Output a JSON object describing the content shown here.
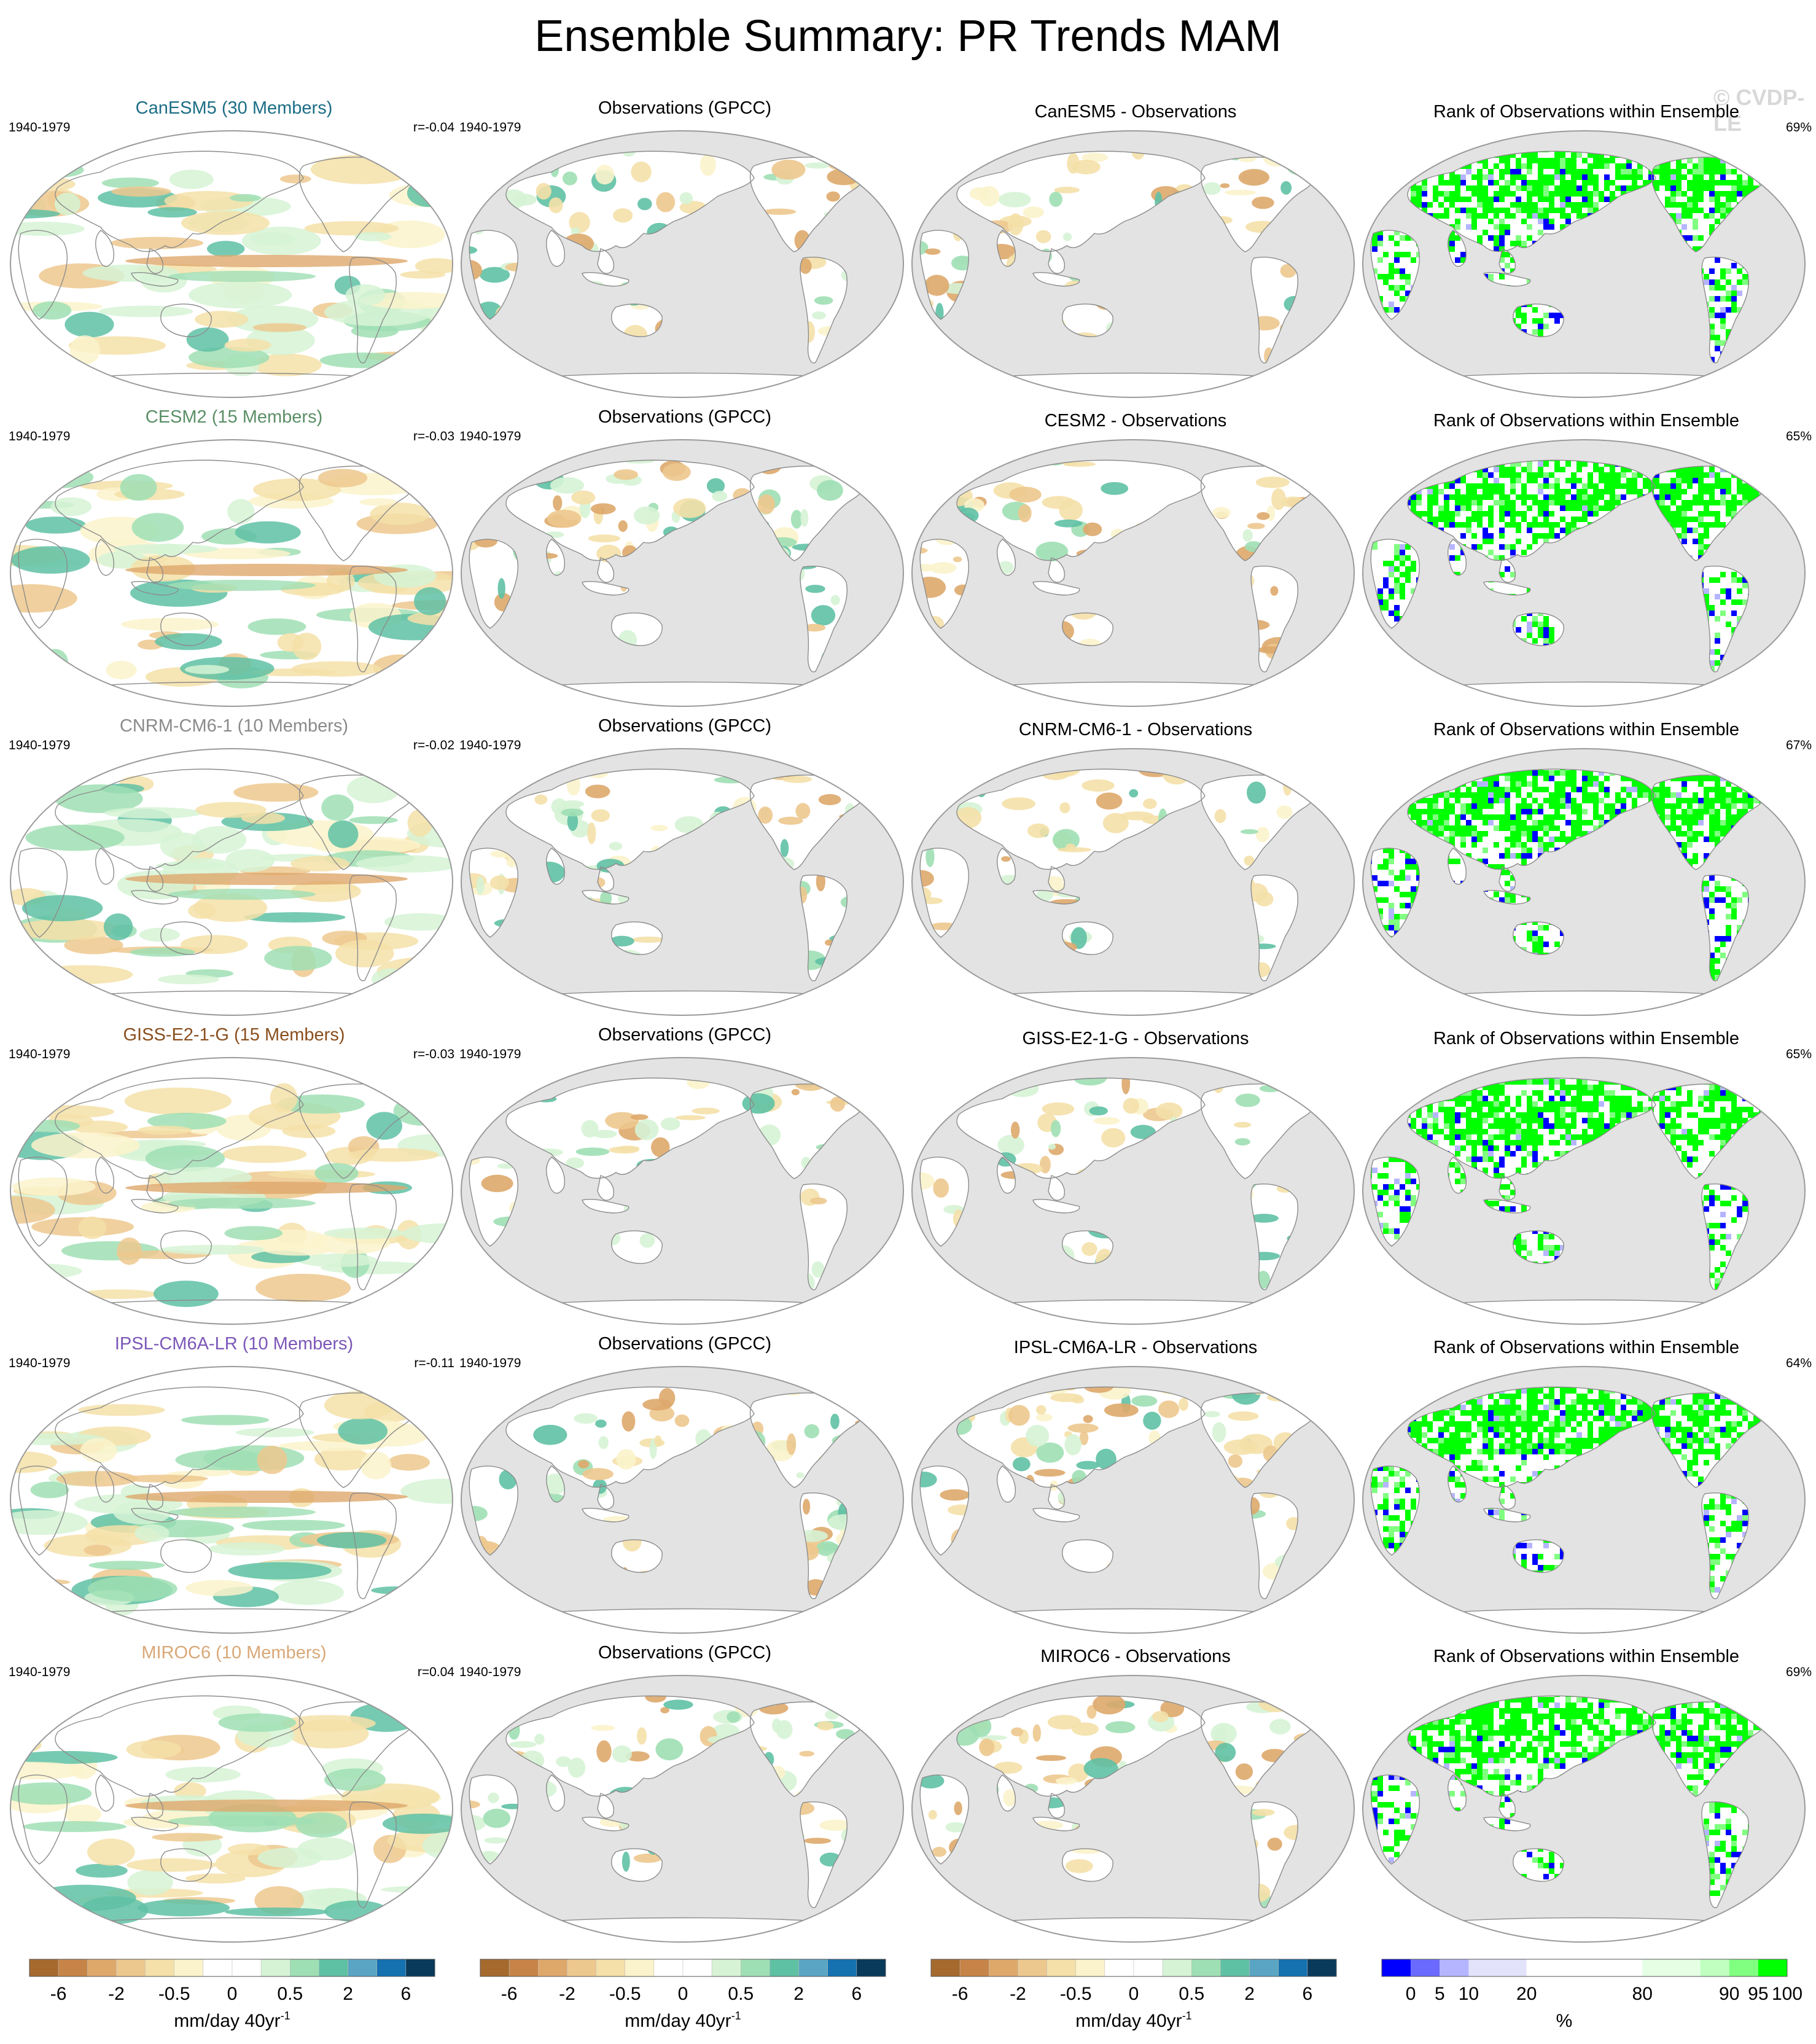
{
  "title": "Ensemble Summary: PR Trends MAM",
  "watermark": "© CVDP-LE",
  "colors": {
    "brown_green": [
      "#a66a2f",
      "#c78448",
      "#dea86b",
      "#edc88e",
      "#f4e0a8",
      "#fbf3cb",
      "#ffffff",
      "#ffffff",
      "#d6f3d5",
      "#9fdfb4",
      "#5fc1a4",
      "#5aa5c4",
      "#1571b0",
      "#093a5a"
    ],
    "rank": [
      "#0000ff",
      "#6a6aff",
      "#b5b5ff",
      "#e2e2fb",
      "#ffffff",
      "#ffffff",
      "#e5ffe5",
      "#c0ffc0",
      "#80ff80",
      "#00ff00"
    ],
    "ocean_gray": "#e3e3e3",
    "land_gray": "#e3e3e3"
  },
  "column_titles": {
    "obs": "Observations (GPCC)",
    "rank": "Rank of Observations within Ensemble"
  },
  "period": "1940-1979",
  "rows": [
    {
      "model_title": "CanESM5 (30 Members)",
      "model_color": "#1d6e86",
      "r": "r=-0.04",
      "diff_title": "CanESM5 - Observations",
      "rank_pct": "69%"
    },
    {
      "model_title": "CESM2 (15 Members)",
      "model_color": "#5b8f66",
      "r": "r=-0.03",
      "diff_title": "CESM2 - Observations",
      "rank_pct": "65%"
    },
    {
      "model_title": "CNRM-CM6-1 (10 Members)",
      "model_color": "#8a8a8a",
      "r": "r=-0.02",
      "diff_title": "CNRM-CM6-1 - Observations",
      "rank_pct": "67%"
    },
    {
      "model_title": "GISS-E2-1-G (15 Members)",
      "model_color": "#8a4f1e",
      "r": "r=-0.03",
      "diff_title": "GISS-E2-1-G - Observations",
      "rank_pct": "65%"
    },
    {
      "model_title": "IPSL-CM6A-LR (10 Members)",
      "model_color": "#7c57b8",
      "r": "r=-0.11",
      "diff_title": "IPSL-CM6A-LR - Observations",
      "rank_pct": "64%"
    },
    {
      "model_title": "MIROC6 (10 Members)",
      "model_color": "#d9a878",
      "r": "r=0.04",
      "diff_title": "MIROC6 - Observations",
      "rank_pct": "69%"
    }
  ],
  "colorbars": {
    "trend_ticks": [
      "-6",
      "-2",
      "-0.5",
      "0",
      "0.5",
      "2",
      "6"
    ],
    "trend_label": "mm/day 40yr",
    "trend_label_sup": "-1",
    "rank_ticks": [
      "0",
      "5",
      "10",
      "20",
      "80",
      "90",
      "95",
      "100"
    ],
    "rank_label": "%"
  },
  "chart_data": {
    "type": "heatmap",
    "title": "Ensemble Summary: PR Trends MAM",
    "variable": "PR trends (mm/day 40yr-1), MAM, 1940-1979",
    "trend_levels": [
      -6,
      -4,
      -2,
      -1,
      -0.5,
      -0.25,
      0,
      0.25,
      0.5,
      1,
      2,
      4,
      6
    ],
    "rank_levels": [
      0,
      5,
      10,
      20,
      80,
      90,
      95,
      100
    ],
    "panels": [
      {
        "row": "CanESM5",
        "pattern_correlation": -0.04,
        "rank_percent": 69
      },
      {
        "row": "CESM2",
        "pattern_correlation": -0.03,
        "rank_percent": 65
      },
      {
        "row": "CNRM-CM6-1",
        "pattern_correlation": -0.02,
        "rank_percent": 67
      },
      {
        "row": "GISS-E2-1-G",
        "pattern_correlation": -0.03,
        "rank_percent": 65
      },
      {
        "row": "IPSL-CM6A-LR",
        "pattern_correlation": -0.11,
        "rank_percent": 64
      },
      {
        "row": "MIROC6",
        "pattern_correlation": 0.04,
        "rank_percent": 69
      }
    ]
  }
}
